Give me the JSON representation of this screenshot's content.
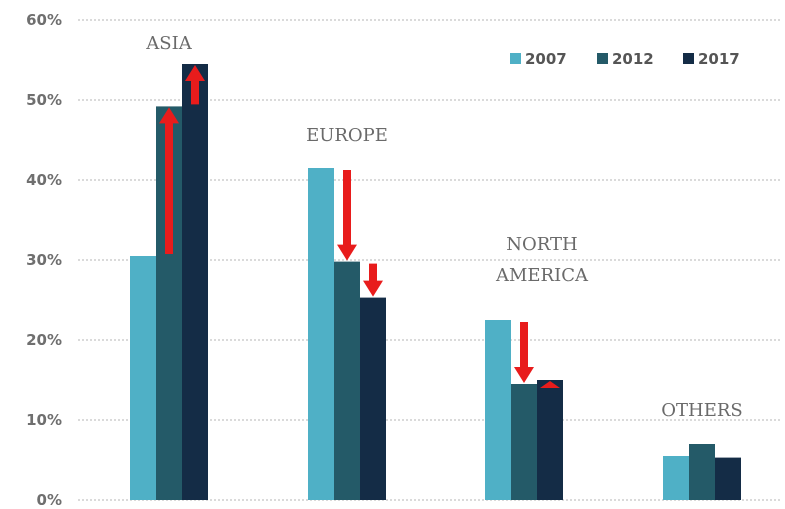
{
  "chart_data": {
    "type": "bar",
    "categories": [
      "ASIA",
      "EUROPE",
      "NORTH AMERICA",
      "OTHERS"
    ],
    "category_label_lines": [
      [
        "ASIA"
      ],
      [
        "EUROPE"
      ],
      [
        "NORTH",
        "AMERICA"
      ],
      [
        "OTHERS"
      ]
    ],
    "series": [
      {
        "name": "2007",
        "color": "#4fb0c6",
        "values": [
          30.5,
          41.5,
          22.5,
          5.5
        ]
      },
      {
        "name": "2012",
        "color": "#245a68",
        "values": [
          49.2,
          29.8,
          14.5,
          7.0
        ]
      },
      {
        "name": "2017",
        "color": "#142c46",
        "values": [
          54.5,
          25.3,
          15.0,
          5.3
        ]
      }
    ],
    "y_ticks": [
      "0%",
      "10%",
      "20%",
      "30%",
      "40%",
      "50%",
      "60%"
    ],
    "ylim": [
      0,
      60
    ],
    "grid": true,
    "legend_position": "top-right",
    "title": "",
    "xlabel": "",
    "ylabel": "",
    "arrows": [
      {
        "category": "ASIA",
        "from": "2007",
        "to": "2012",
        "direction": "up"
      },
      {
        "category": "ASIA",
        "from": "2012",
        "to": "2017",
        "direction": "up"
      },
      {
        "category": "EUROPE",
        "from": "2007",
        "to": "2012",
        "direction": "down"
      },
      {
        "category": "EUROPE",
        "from": "2012",
        "to": "2017",
        "direction": "down"
      },
      {
        "category": "NORTH AMERICA",
        "from": "2007",
        "to": "2012",
        "direction": "down"
      },
      {
        "category": "NORTH AMERICA",
        "from": "2012",
        "to": "2017",
        "direction": "up"
      }
    ],
    "arrow_color": "#e81c1c"
  }
}
